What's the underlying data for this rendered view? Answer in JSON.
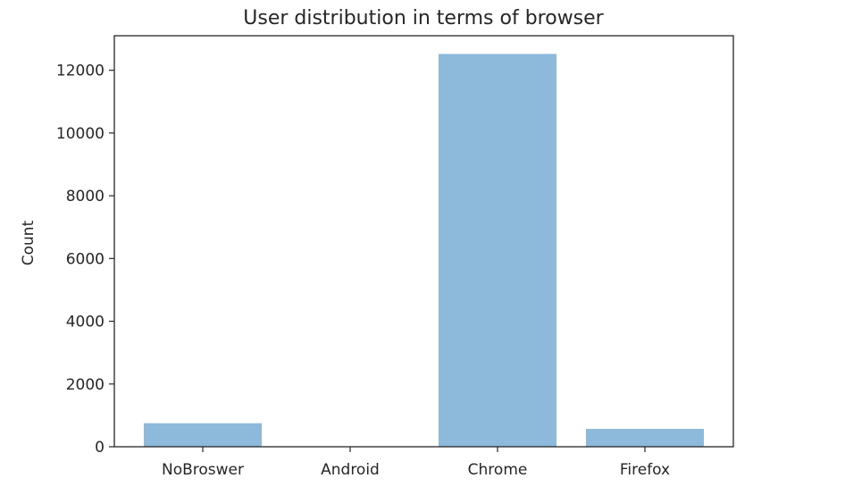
{
  "chart_data": {
    "type": "bar",
    "title": "User distribution in terms of browser",
    "xlabel": "",
    "ylabel": "Count",
    "categories": [
      "NoBroswer",
      "Android",
      "Chrome",
      "Firefox"
    ],
    "values": [
      750,
      0,
      12520,
      570
    ],
    "ylim": [
      0,
      13100
    ],
    "yticks": [
      0,
      2000,
      4000,
      6000,
      8000,
      10000,
      12000
    ],
    "grid": false,
    "legend": "none",
    "bar_color": "#8db9da",
    "axis_color": "#262626"
  }
}
